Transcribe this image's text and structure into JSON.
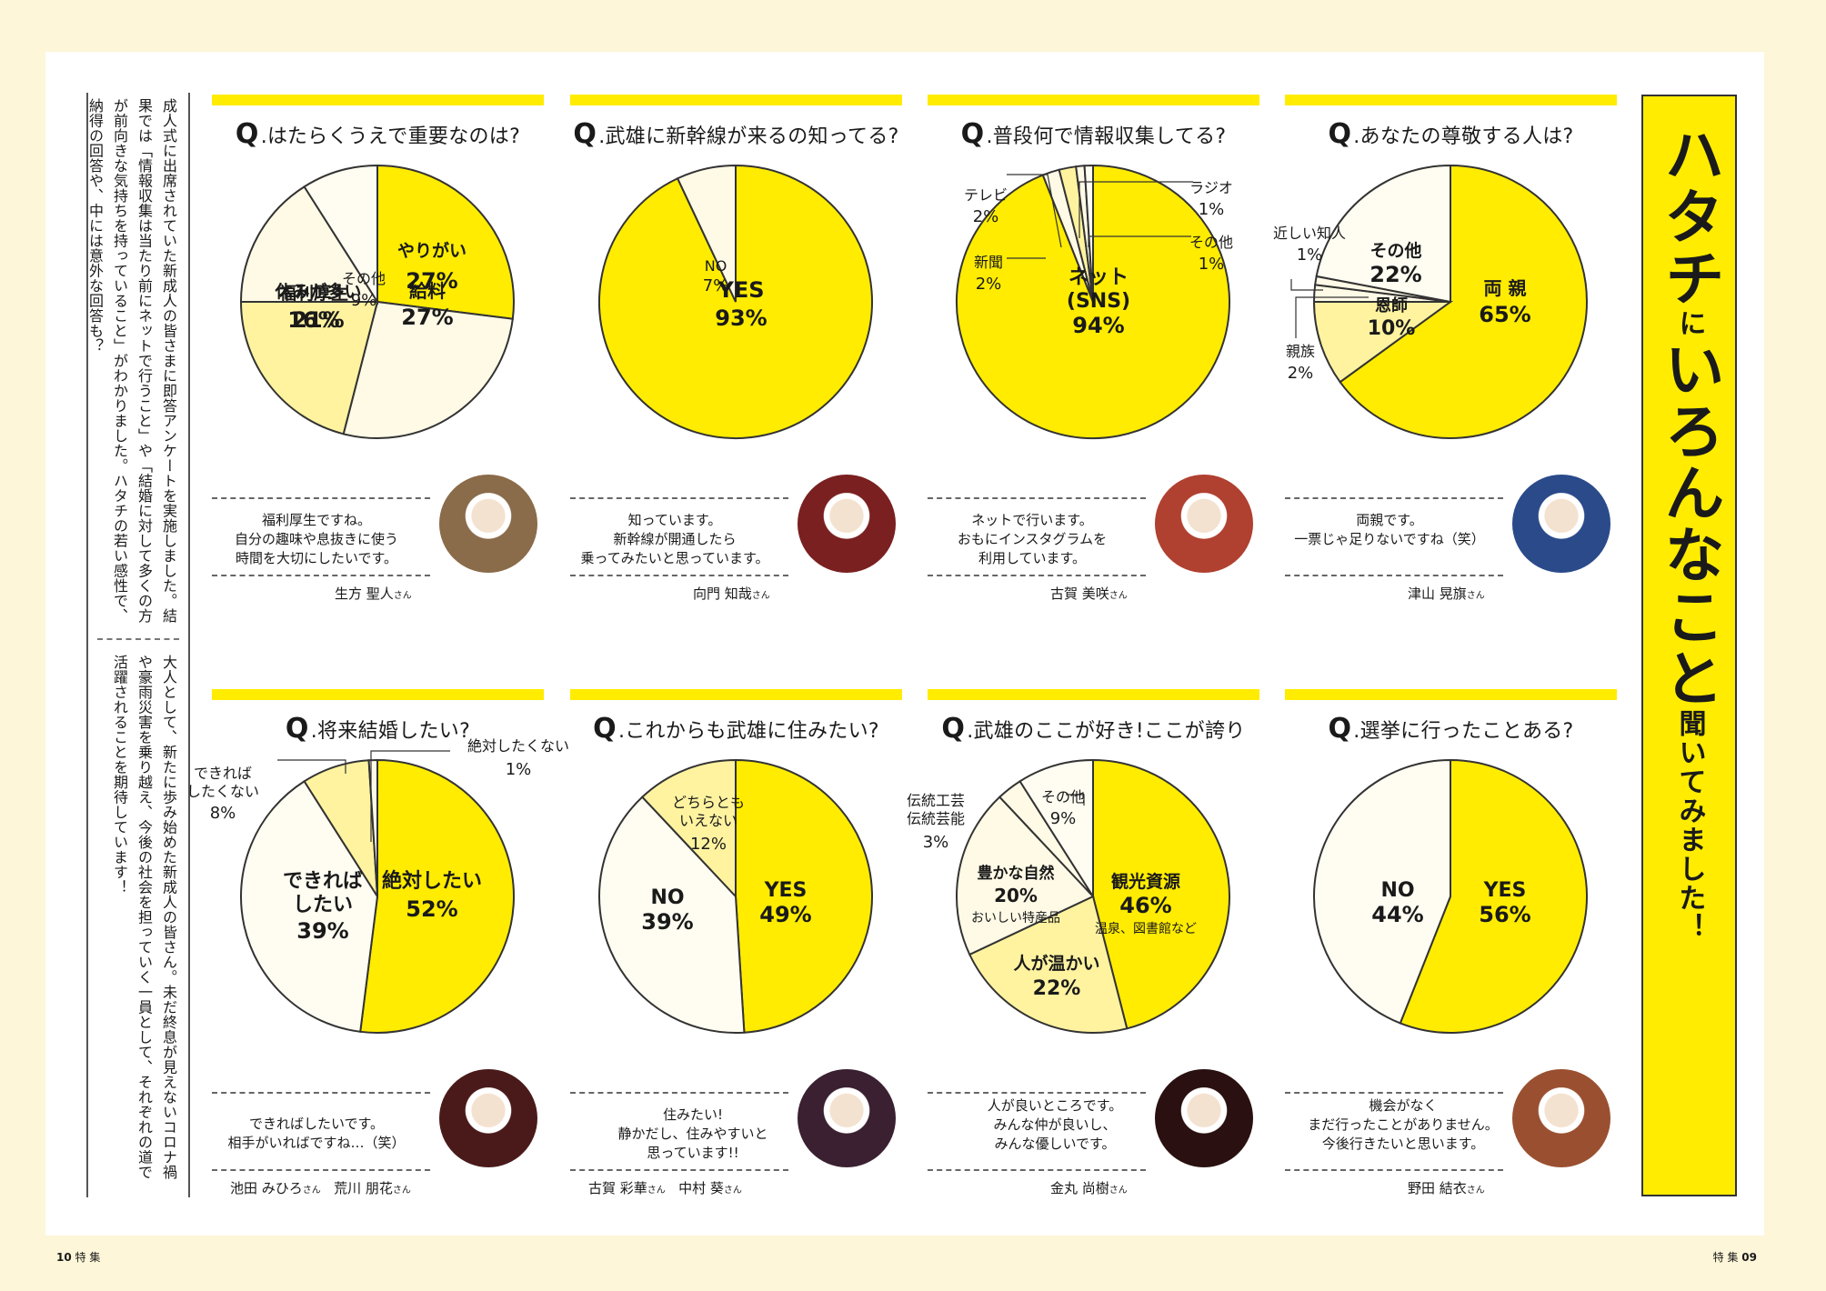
{
  "intro": {
    "paragraph1": "成人式に出席されていた新成人の皆さまに即答アンケートを実施しました。結果では「情報収集は当たり前にネットで行うこと」や「結婚に対して多くの方が前向きな気持ちを持っていること」がわかりました。ハタチの若い感性で、納得の回答や、中には意外な回答も？",
    "paragraph2": "大人として、新たに歩み始めた新成人の皆さん。未だ終息が見えないコロナ禍や豪雨災害を乗り越え、今後の社会を担っていく一員として、それぞれの道で活躍されることを期待しています！"
  },
  "feature_title": {
    "big1": "ハタチ",
    "small1": "に",
    "big2": "いろんなこと",
    "small2": "聞いてみました！"
  },
  "page_numbers": {
    "left_num": "10",
    "left_label": "特 集",
    "right_label": "特 集",
    "right_num": "09"
  },
  "colors": {
    "yellow": "#ffec00",
    "mid": "#fff3a0",
    "pale": "#fffae6",
    "cream": "#fffdf2",
    "outline": "#333333"
  },
  "chart_data": [
    {
      "type": "pie",
      "title": "はたらくうえで重要なのは?",
      "slices": [
        {
          "label": "やりがい",
          "value": 27,
          "display": "27%",
          "color": "yellow"
        },
        {
          "label": "給料",
          "value": 27,
          "display": "27%",
          "color": "pale"
        },
        {
          "label": "休みが多い",
          "value": 21,
          "display": "21%",
          "color": "mid"
        },
        {
          "label": "福利厚生",
          "value": 16,
          "display": "16%",
          "color": "pale"
        },
        {
          "label": "その他",
          "value": 9,
          "display": "9%",
          "color": "cream"
        }
      ]
    },
    {
      "type": "pie",
      "title": "武雄に新幹線が来るの知ってる?",
      "slices": [
        {
          "label": "YES",
          "value": 93,
          "display": "93%",
          "color": "yellow"
        },
        {
          "label": "NO",
          "value": 7,
          "display": "7%",
          "color": "pale"
        }
      ]
    },
    {
      "type": "pie",
      "title": "普段何で情報収集してる?",
      "slices": [
        {
          "label": "ネット(SNS)",
          "value": 94,
          "display": "94%",
          "color": "yellow"
        },
        {
          "label": "新聞",
          "value": 2,
          "display": "2%",
          "color": "pale"
        },
        {
          "label": "テレビ",
          "value": 2,
          "display": "2%",
          "color": "mid"
        },
        {
          "label": "ラジオ",
          "value": 1,
          "display": "1%",
          "color": "pale"
        },
        {
          "label": "その他",
          "value": 1,
          "display": "1%",
          "color": "cream"
        }
      ]
    },
    {
      "type": "pie",
      "title": "あなたの尊敬する人は?",
      "slices": [
        {
          "label": "両親",
          "value": 65,
          "display": "65%",
          "color": "yellow"
        },
        {
          "label": "恩師",
          "value": 10,
          "display": "10%",
          "color": "mid"
        },
        {
          "label": "親族",
          "value": 2,
          "display": "2%",
          "color": "pale"
        },
        {
          "label": "近しい知人",
          "value": 1,
          "display": "1%",
          "color": "pale"
        },
        {
          "label": "その他",
          "value": 22,
          "display": "22%",
          "color": "cream"
        }
      ]
    },
    {
      "type": "pie",
      "title": "将来結婚したい?",
      "slices": [
        {
          "label": "絶対したい",
          "value": 52,
          "display": "52%",
          "color": "yellow"
        },
        {
          "label": "できればしたい",
          "value": 39,
          "display": "39%",
          "color": "cream"
        },
        {
          "label": "できればしたくない",
          "value": 8,
          "display": "8%",
          "color": "mid"
        },
        {
          "label": "絶対したくない",
          "value": 1,
          "display": "1%",
          "color": "pale"
        }
      ]
    },
    {
      "type": "pie",
      "title": "これからも武雄に住みたい?",
      "slices": [
        {
          "label": "YES",
          "value": 49,
          "display": "49%",
          "color": "yellow"
        },
        {
          "label": "NO",
          "value": 39,
          "display": "39%",
          "color": "cream"
        },
        {
          "label": "どちらともいえない",
          "value": 12,
          "display": "12%",
          "color": "mid"
        }
      ]
    },
    {
      "type": "pie",
      "title": "武雄のここが好き!ここが誇り",
      "slices": [
        {
          "label": "観光資源",
          "value": 46,
          "display": "46%",
          "note": "温泉、図書館など",
          "color": "yellow"
        },
        {
          "label": "人が温かい",
          "value": 22,
          "display": "22%",
          "color": "mid"
        },
        {
          "label": "豊かな自然",
          "value": 20,
          "display": "20%",
          "note": "おいしい特産品",
          "color": "pale"
        },
        {
          "label": "伝統工芸 伝統芸能",
          "value": 3,
          "display": "3%",
          "color": "pale"
        },
        {
          "label": "その他",
          "value": 9,
          "display": "9%",
          "color": "cream"
        }
      ]
    },
    {
      "type": "pie",
      "title": "選挙に行ったことある?",
      "slices": [
        {
          "label": "YES",
          "value": 56,
          "display": "56%",
          "color": "yellow"
        },
        {
          "label": "NO",
          "value": 44,
          "display": "44%",
          "color": "cream"
        }
      ]
    }
  ],
  "panels": [
    {
      "quote": "福利厚生ですね。\n自分の趣味や息抜きに使う\n時間を大切にしたいです。",
      "name": "生方 聖人",
      "suffix": "さん"
    },
    {
      "quote": "知っています。\n新幹線が開通したら\n乗ってみたいと思っています。",
      "name": "向門 知哉",
      "suffix": "さん"
    },
    {
      "quote": "ネットで行います。\nおもにインスタグラムを\n利用しています。",
      "name": "古賀 美咲",
      "suffix": "さん"
    },
    {
      "quote": "両親です。\n一票じゃ足りないですね（笑）",
      "name": "津山 晃旗",
      "suffix": "さん"
    },
    {
      "quote": "できればしたいです。\n相手がいればですね…（笑）",
      "name": "池田 みひろ",
      "suffix": "さん",
      "name2": "荒川 朋花",
      "suffix2": "さん"
    },
    {
      "quote": "住みたい!\n静かだし、住みやすいと\n思っています!!",
      "name": "古賀 彩華",
      "suffix": "さん",
      "name2": "中村 葵",
      "suffix2": "さん"
    },
    {
      "quote": "人が良いところです。\nみんな仲が良いし、\nみんな優しいです。",
      "name": "金丸 尚樹",
      "suffix": "さん"
    },
    {
      "quote": "機会がなく\nまだ行ったことがありません。\n今後行きたいと思います。",
      "name": "野田 結衣",
      "suffix": "さん"
    }
  ]
}
